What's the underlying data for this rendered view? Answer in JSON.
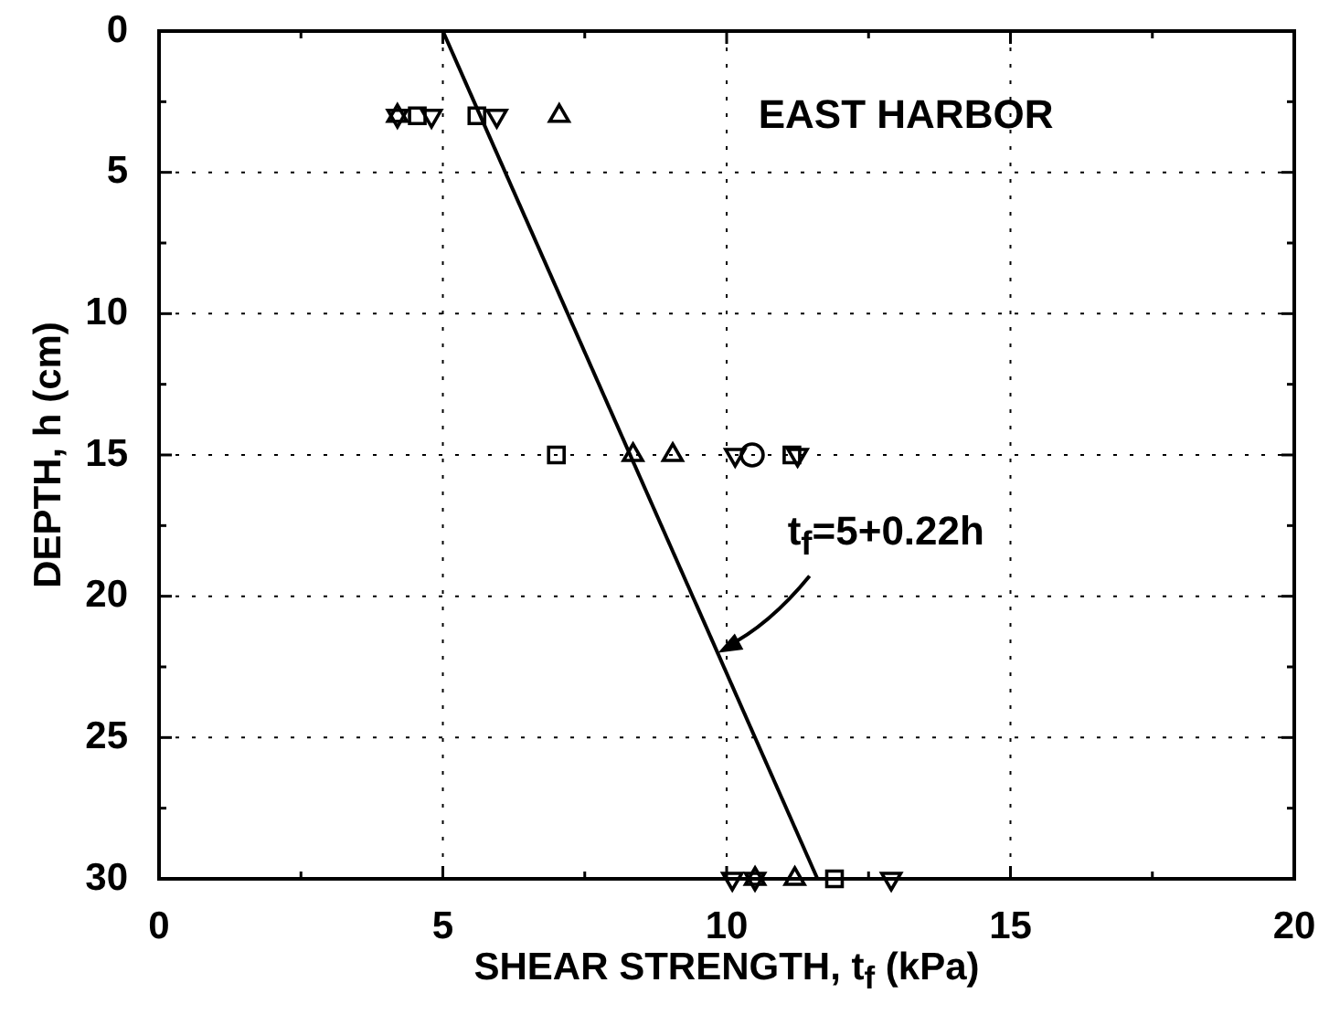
{
  "chart_data": {
    "type": "scatter",
    "xlabel": "SHEAR STRENGTH, t$_{f}$ (kPa)",
    "ylabel": "DEPTH, h (cm)",
    "xlim": [
      0,
      20
    ],
    "xticks": [
      0,
      {
        "value": 2.5,
        "label": null
      },
      5,
      {
        "value": 7.5,
        "label": null
      },
      10,
      {
        "value": 12.5,
        "label": null
      },
      15,
      {
        "value": 17.5,
        "label": null
      },
      20
    ],
    "ylim": [
      30,
      0
    ],
    "yticks": [
      0,
      {
        "value": 2.5,
        "label": null
      },
      5,
      {
        "value": 7.5,
        "label": null
      },
      10,
      {
        "value": 12.5,
        "label": null
      },
      15,
      {
        "value": 17.5,
        "label": null
      },
      20,
      {
        "value": 22.5,
        "label": null
      },
      25,
      {
        "value": 27.5,
        "label": null
      },
      30
    ],
    "grid": true,
    "annotations": [
      "EAST HARBOR",
      {
        "text": "t$_{f}$=5+0.22h",
        "x": 9.85,
        "y": 22
      }
    ],
    "series": [
      {
        "type": "line",
        "color": "#000000",
        "marker": "none",
        "line_style": "solid",
        "x": [
          5,
          11.6
        ],
        "values": [
          0,
          30
        ]
      },
      {
        "color": "#000000",
        "marker": "triangle",
        "x": [
          4.2,
          7.05,
          8.35,
          9.05,
          10.5,
          11.2
        ],
        "values": [
          3,
          3,
          15,
          15,
          30,
          30
        ]
      },
      {
        "color": "#000000",
        "marker": "triangle-down",
        "x": [
          4.2,
          4.8,
          5.95,
          10.15,
          11.25,
          10.1,
          10.5,
          12.9
        ],
        "values": [
          3,
          3,
          3,
          15,
          15,
          30,
          30,
          30
        ]
      },
      {
        "color": "#000000",
        "marker": "square",
        "x": [
          4.55,
          5.6,
          7.0,
          11.15,
          11.9
        ],
        "values": [
          3,
          3,
          15,
          15,
          30
        ]
      },
      {
        "color": "#000000",
        "marker": "circle",
        "x": [
          10.45
        ],
        "values": [
          15
        ]
      }
    ]
  }
}
